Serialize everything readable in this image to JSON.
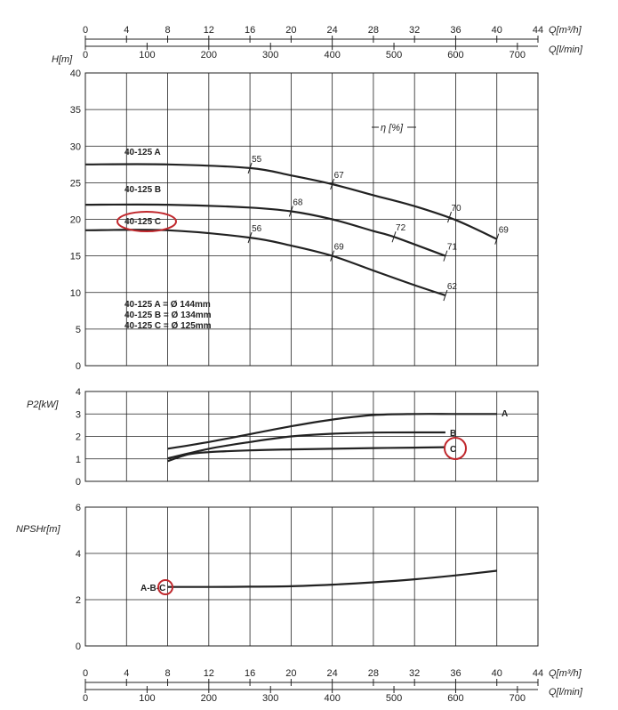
{
  "colors": {
    "ink": "#222222",
    "highlight": "#c0282d",
    "background": "#ffffff"
  },
  "axes": {
    "q_m3h_label": "Q[m³/h]",
    "q_lmin_label": "Q[l/min]",
    "q_m3h_ticks": [
      "0",
      "4",
      "8",
      "12",
      "16",
      "20",
      "24",
      "28",
      "32",
      "36",
      "40",
      "44"
    ],
    "q_lmin_ticks": [
      "0",
      "100",
      "200",
      "300",
      "400",
      "500",
      "600",
      "700"
    ]
  },
  "chart_data": [
    {
      "type": "line",
      "panel": "head",
      "ylabel": "H[m]",
      "ylim": [
        0,
        40
      ],
      "yticks": [
        "0",
        "5",
        "10",
        "15",
        "20",
        "25",
        "30",
        "35",
        "40"
      ],
      "efficiency_label": "η [%]",
      "x_unit": "m³/h",
      "xlim": [
        0,
        44
      ],
      "series": [
        {
          "name": "40-125 A",
          "x": [
            0,
            8,
            16,
            20,
            24,
            28,
            32,
            36,
            40
          ],
          "y": [
            27.5,
            27.5,
            27.0,
            26.0,
            24.8,
            23.3,
            21.8,
            19.9,
            17.3
          ]
        },
        {
          "name": "40-125 B",
          "x": [
            0,
            8,
            16,
            20,
            24,
            28,
            30,
            35
          ],
          "y": [
            22.0,
            22.0,
            21.6,
            21.1,
            20.0,
            18.4,
            17.6,
            15.0
          ]
        },
        {
          "name": "40-125 C",
          "x": [
            0,
            8,
            16,
            20,
            24,
            28,
            32,
            35
          ],
          "y": [
            18.5,
            18.5,
            17.5,
            16.4,
            15.0,
            13.0,
            11.0,
            9.6
          ]
        }
      ],
      "efficiency_marks": [
        {
          "series": "40-125 A",
          "x": 16,
          "y": 27.0,
          "label": "55"
        },
        {
          "series": "40-125 A",
          "x": 24,
          "y": 24.8,
          "label": "67"
        },
        {
          "series": "40-125 A",
          "x": 35.4,
          "y": 20.3,
          "label": "70"
        },
        {
          "series": "40-125 A",
          "x": 40,
          "y": 17.3,
          "label": "69"
        },
        {
          "series": "40-125 B",
          "x": 20,
          "y": 21.1,
          "label": "68"
        },
        {
          "series": "40-125 B",
          "x": 30,
          "y": 17.6,
          "label": "72"
        },
        {
          "series": "40-125 B",
          "x": 35,
          "y": 15.0,
          "label": "71"
        },
        {
          "series": "40-125 C",
          "x": 16,
          "y": 17.5,
          "label": "56"
        },
        {
          "series": "40-125 C",
          "x": 24,
          "y": 15.0,
          "label": "69"
        },
        {
          "series": "40-125 C",
          "x": 35,
          "y": 9.6,
          "label": "62"
        }
      ],
      "legend": [
        "40-125 A = Ø 144mm",
        "40-125 B = Ø 134mm",
        "40-125 C = Ø 125mm"
      ],
      "highlighted": "40-125 C"
    },
    {
      "type": "line",
      "panel": "power",
      "ylabel": "P2[kW]",
      "ylim": [
        0,
        4
      ],
      "yticks": [
        "0",
        "1",
        "2",
        "3",
        "4"
      ],
      "x_unit": "m³/h",
      "xlim": [
        0,
        44
      ],
      "series": [
        {
          "name": "A",
          "x": [
            8,
            12,
            16,
            20,
            24,
            28,
            32,
            36,
            40
          ],
          "y": [
            1.45,
            1.75,
            2.1,
            2.45,
            2.75,
            2.95,
            3.0,
            3.0,
            3.0
          ]
        },
        {
          "name": "B",
          "x": [
            8,
            12,
            16,
            20,
            24,
            28,
            32,
            35
          ],
          "y": [
            1.02,
            1.45,
            1.75,
            2.0,
            2.12,
            2.17,
            2.18,
            2.18
          ]
        },
        {
          "name": "C",
          "x": [
            8,
            10,
            12,
            16,
            20,
            24,
            28,
            32,
            35
          ],
          "y": [
            0.9,
            1.2,
            1.3,
            1.38,
            1.42,
            1.45,
            1.48,
            1.5,
            1.52
          ]
        }
      ],
      "highlighted": "C"
    },
    {
      "type": "line",
      "panel": "npsh",
      "ylabel": "NPSHr[m]",
      "ylim": [
        0,
        6
      ],
      "yticks": [
        "0",
        "2",
        "4",
        "6"
      ],
      "x_unit": "m³/h",
      "xlim": [
        0,
        44
      ],
      "series": [
        {
          "name": "A-B-C",
          "x": [
            8,
            12,
            16,
            20,
            24,
            28,
            32,
            36,
            40
          ],
          "y": [
            2.55,
            2.55,
            2.56,
            2.58,
            2.65,
            2.75,
            2.88,
            3.05,
            3.25
          ]
        }
      ],
      "highlighted": "C"
    }
  ]
}
